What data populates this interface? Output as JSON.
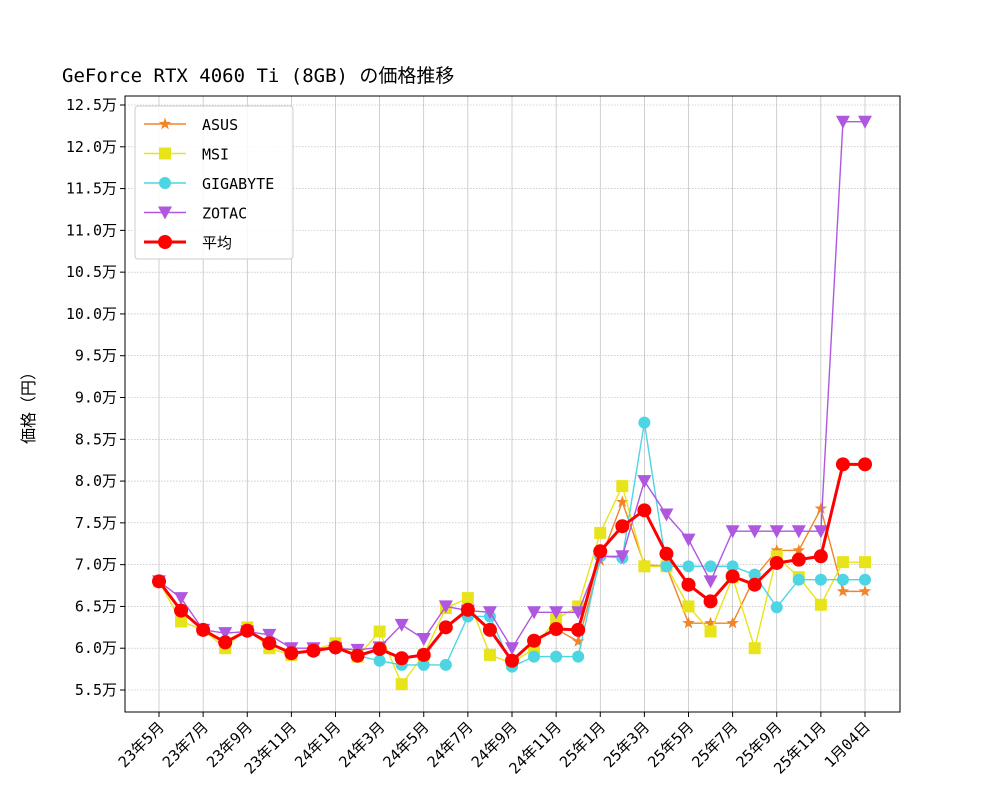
{
  "chart_data": {
    "type": "line",
    "title": "GeForce RTX 4060 Ti (8GB) の価格推移",
    "xlabel": "",
    "ylabel": "価格（円）",
    "ylim": [
      5.25,
      12.6
    ],
    "yticks": [
      5.5,
      6.0,
      6.5,
      7.0,
      7.5,
      8.0,
      8.5,
      9.0,
      9.5,
      10.0,
      10.5,
      11.0,
      11.5,
      12.0,
      12.5
    ],
    "ytick_labels": [
      "5.5万",
      "6.0万",
      "6.5万",
      "7.0万",
      "7.5万",
      "8.0万",
      "8.5万",
      "9.0万",
      "9.5万",
      "10.0万",
      "10.5万",
      "11.0万",
      "11.5万",
      "12.0万",
      "12.5万"
    ],
    "x_tick_indices": [
      0,
      2,
      4,
      6,
      8,
      10,
      12,
      14,
      16,
      18,
      20,
      22,
      24,
      26,
      28,
      30,
      32
    ],
    "x_tick_labels": [
      "23年5月",
      "23年7月",
      "23年9月",
      "23年11月",
      "24年1月",
      "24年3月",
      "24年5月",
      "24年7月",
      "24年9月",
      "24年11月",
      "25年1月",
      "25年3月",
      "25年5月",
      "25年7月",
      "25年9月",
      "25年11月",
      "1月04日"
    ],
    "grid": true,
    "legend_position": "top-left",
    "unit": "万円",
    "series": [
      {
        "name": "ASUS",
        "color": "#f28428",
        "marker": "star",
        "values": [
          6.8,
          6.45,
          6.22,
          6.07,
          6.21,
          6.06,
          5.94,
          5.97,
          6.01,
          5.91,
          5.99,
          5.88,
          5.92,
          6.25,
          6.46,
          6.22,
          5.85,
          6.09,
          6.23,
          6.08,
          7.05,
          7.75,
          7.0,
          6.98,
          6.3,
          6.3,
          6.3,
          6.85,
          7.17,
          7.17,
          7.67,
          6.68,
          6.68
        ]
      },
      {
        "name": "MSI",
        "color": "#e8e41a",
        "marker": "square",
        "values": [
          6.8,
          6.32,
          6.22,
          6.0,
          6.25,
          6.0,
          5.92,
          5.98,
          6.06,
          5.9,
          6.2,
          5.57,
          5.92,
          6.48,
          6.6,
          5.92,
          5.82,
          6.0,
          6.35,
          6.5,
          7.38,
          7.94,
          6.98,
          6.98,
          6.5,
          6.2,
          6.85,
          6.0,
          7.1,
          6.85,
          6.52,
          7.03,
          7.03
        ]
      },
      {
        "name": "GIGABYTE",
        "color": "#4dd5e3",
        "marker": "circle",
        "values": [
          6.8,
          6.45,
          6.22,
          6.07,
          6.21,
          6.06,
          5.94,
          5.97,
          6.01,
          5.91,
          5.85,
          5.8,
          5.8,
          5.8,
          6.38,
          6.38,
          5.78,
          5.9,
          5.9,
          5.9,
          7.1,
          7.08,
          8.7,
          6.98,
          6.98,
          6.98,
          6.98,
          6.88,
          6.49,
          6.82,
          6.82,
          6.82,
          6.82
        ]
      },
      {
        "name": "ZOTAC",
        "color": "#b057e0",
        "marker": "triangle-down",
        "values": [
          6.8,
          6.6,
          6.22,
          6.18,
          6.2,
          6.16,
          6.0,
          6.0,
          6.0,
          5.98,
          6.01,
          6.28,
          6.11,
          6.5,
          6.45,
          6.43,
          6.0,
          6.43,
          6.43,
          6.43,
          7.1,
          7.1,
          8.0,
          7.6,
          7.3,
          6.8,
          7.4,
          7.4,
          7.4,
          7.4,
          7.4,
          12.3,
          12.3
        ]
      },
      {
        "name": "平均",
        "color": "#ff0000",
        "marker": "circle-bold",
        "values": [
          6.8,
          6.45,
          6.22,
          6.07,
          6.21,
          6.06,
          5.94,
          5.97,
          6.01,
          5.91,
          5.99,
          5.88,
          5.92,
          6.25,
          6.46,
          6.22,
          5.85,
          6.09,
          6.23,
          6.22,
          7.16,
          7.46,
          7.65,
          7.13,
          6.76,
          6.56,
          6.86,
          6.76,
          7.02,
          7.06,
          7.1,
          8.2,
          8.2
        ]
      }
    ]
  }
}
